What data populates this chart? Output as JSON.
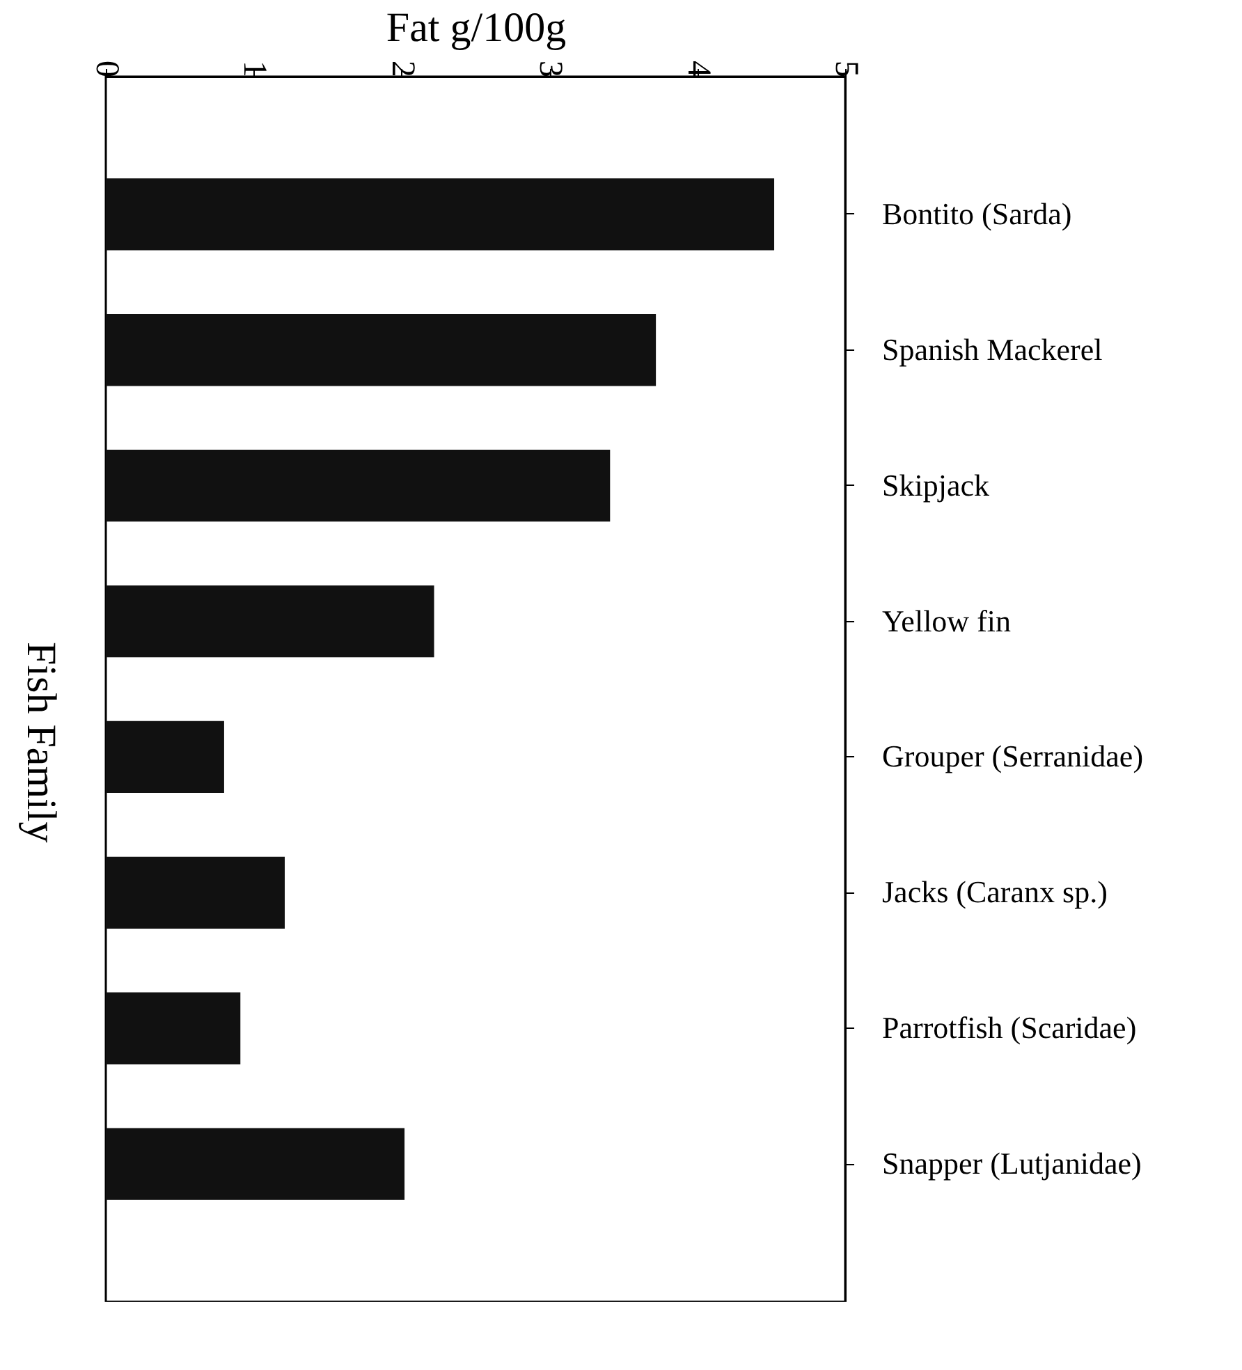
{
  "chart_data": {
    "type": "bar",
    "orientation": "horizontal",
    "xlabel": "Fat g/100g",
    "ylabel": "Fish Family",
    "categories": [
      "Bontito (Sarda)",
      "Spanish Mackerel",
      "Skipjack",
      "Yellow fin",
      "Grouper (Serranidae)",
      "Jacks (Caranx sp.)",
      "Parrotfish (Scaridae)",
      "Snapper (Lutjanidae)"
    ],
    "values": [
      4.52,
      3.72,
      3.41,
      2.22,
      0.8,
      1.21,
      0.91,
      2.02
    ],
    "color": "#111111",
    "xlim": [
      0,
      5
    ],
    "xticks": [
      0,
      1,
      2,
      3,
      4,
      5
    ],
    "grid": false
  }
}
